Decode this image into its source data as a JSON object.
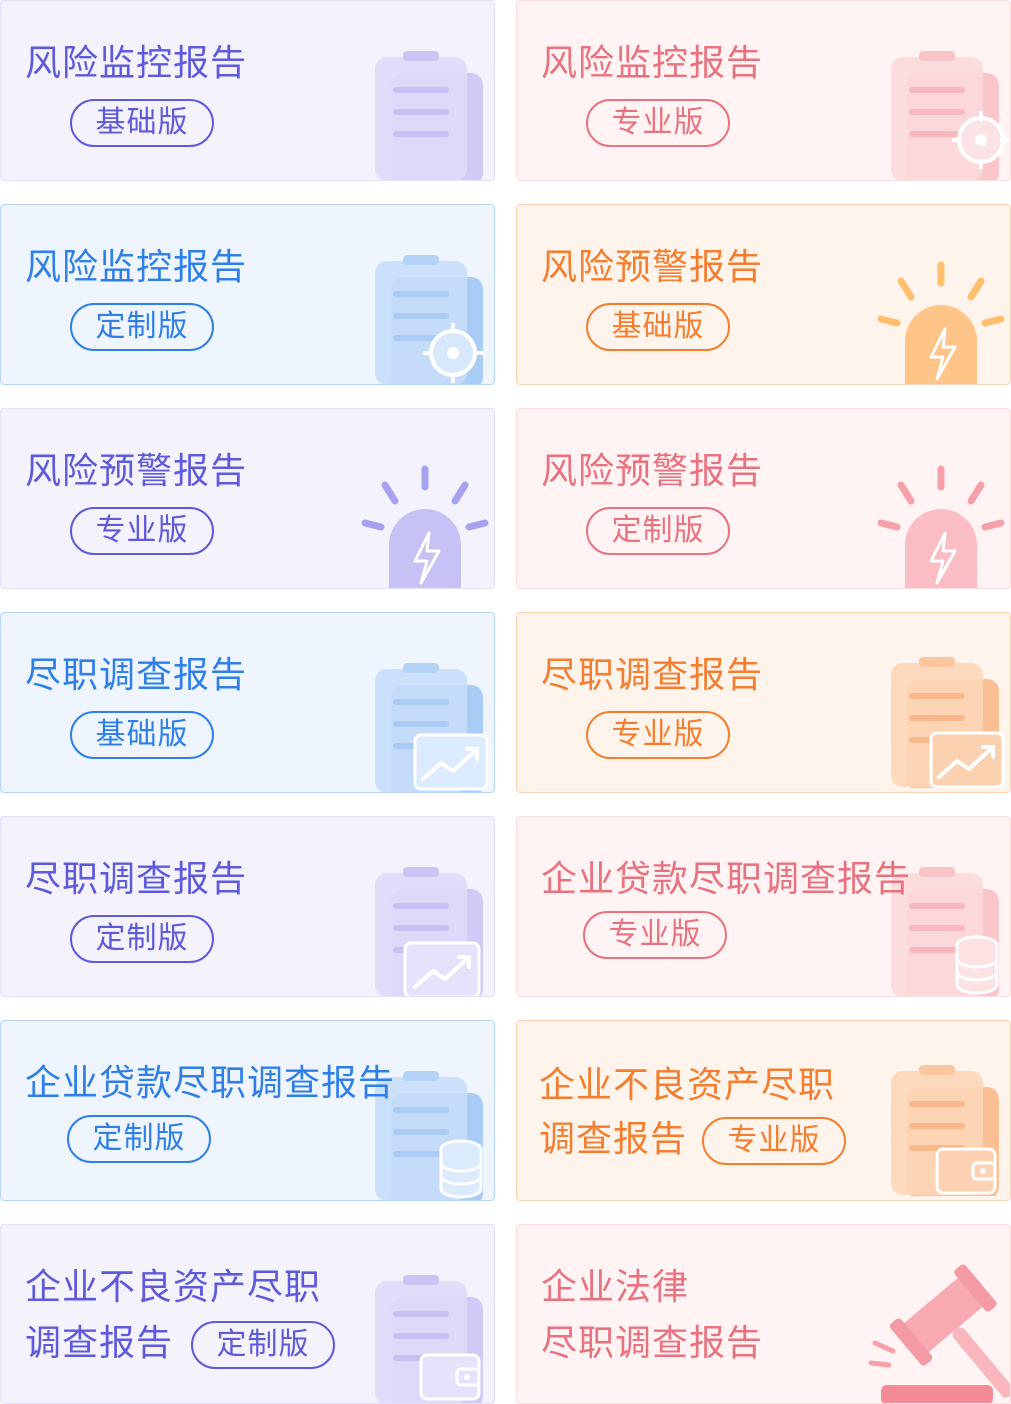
{
  "cards": [
    {
      "title": "风险监控报告",
      "badge": "基础版",
      "theme": "violet",
      "icon": "clipboard-icon"
    },
    {
      "title": "风险监控报告",
      "badge": "专业版",
      "theme": "pink",
      "icon": "clipboard-target-icon"
    },
    {
      "title": "风险监控报告",
      "badge": "定制版",
      "theme": "blue",
      "icon": "clipboard-target-icon"
    },
    {
      "title": "风险预警报告",
      "badge": "基础版",
      "theme": "orange",
      "icon": "alarm-light-icon"
    },
    {
      "title": "风险预警报告",
      "badge": "专业版",
      "theme": "violet",
      "icon": "alarm-light-icon"
    },
    {
      "title": "风险预警报告",
      "badge": "定制版",
      "theme": "pink",
      "icon": "alarm-light-icon"
    },
    {
      "title": "尽职调查报告",
      "badge": "基础版",
      "theme": "blue",
      "icon": "clipboard-chart-icon"
    },
    {
      "title": "尽职调查报告",
      "badge": "专业版",
      "theme": "orange",
      "icon": "clipboard-chart-icon"
    },
    {
      "title": "尽职调查报告",
      "badge": "定制版",
      "theme": "violet",
      "icon": "clipboard-chart-icon"
    },
    {
      "title": "企业贷款尽职调查报告",
      "badge": "专业版",
      "theme": "pink",
      "icon": "clipboard-coins-icon"
    },
    {
      "title": "企业贷款尽职调查报告",
      "badge": "定制版",
      "theme": "blue",
      "icon": "clipboard-coins-icon"
    },
    {
      "title": "企业不良资产尽职",
      "title2": "调查报告",
      "badge": "专业版",
      "theme": "orange",
      "icon": "clipboard-wallet-icon"
    },
    {
      "title": "企业不良资产尽职",
      "title2": "调查报告",
      "badge": "定制版",
      "theme": "violet",
      "icon": "clipboard-wallet-icon"
    },
    {
      "title": "企业法律",
      "title2": "尽职调查报告",
      "theme": "pink",
      "icon": "gavel-icon"
    }
  ],
  "colors": {
    "violet": "#5e5ad9",
    "blue": "#2f7fe6",
    "pink": "#e8727f",
    "orange": "#f37e2f"
  }
}
